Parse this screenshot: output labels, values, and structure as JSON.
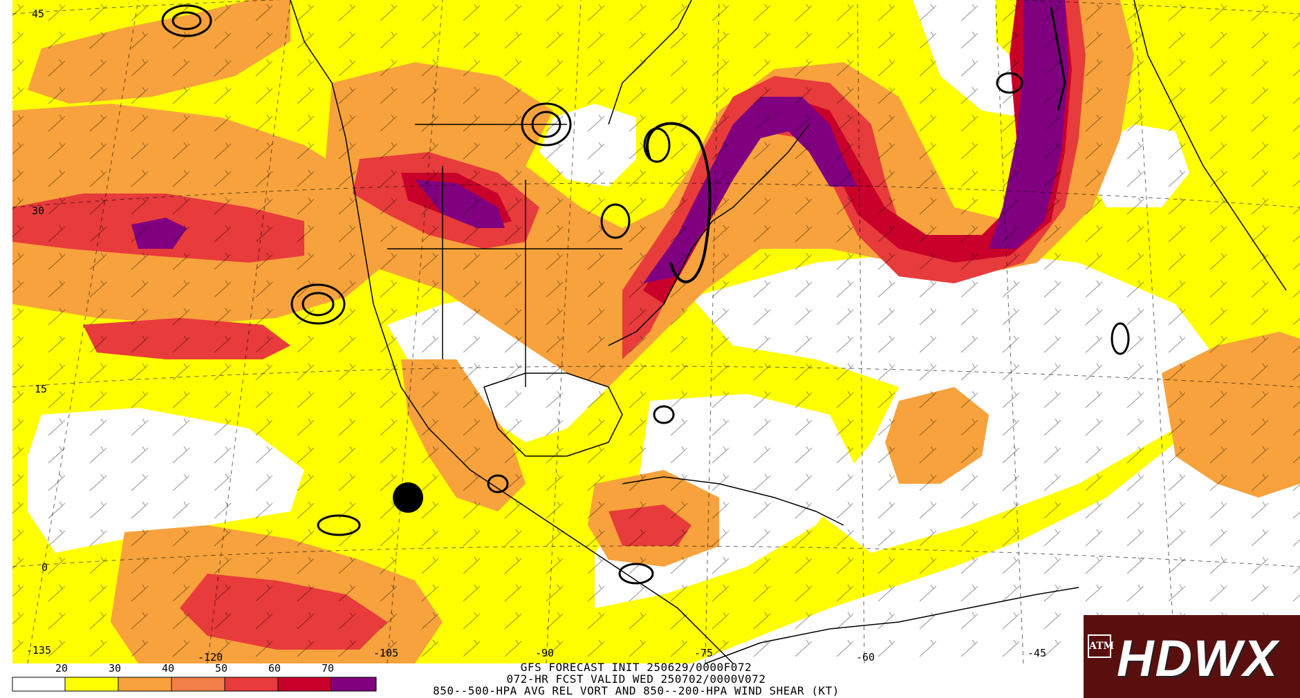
{
  "legend": {
    "ticks": [
      "20",
      "30",
      "40",
      "50",
      "60",
      "70"
    ],
    "colors": [
      "#ffffff",
      "#ffff00",
      "#f7a23c",
      "#f08048",
      "#e83b3b",
      "#c8002a",
      "#800080"
    ]
  },
  "caption": {
    "line1": "GFS FORECAST INIT 250629/0000F072",
    "line2": "072-HR FCST VALID WED 250702/0000V072",
    "line3": "850--500-HPA AVG REL VORT AND 850--200-HPA WIND SHEAR (KT)"
  },
  "latitude_labels": [
    "45",
    "30",
    "15",
    "0"
  ],
  "longitude_labels": [
    "-135",
    "-120",
    "-105",
    "-90",
    "-75",
    "-60",
    "-45"
  ],
  "logo": {
    "text": "HDWX",
    "mark": "ATM"
  }
}
